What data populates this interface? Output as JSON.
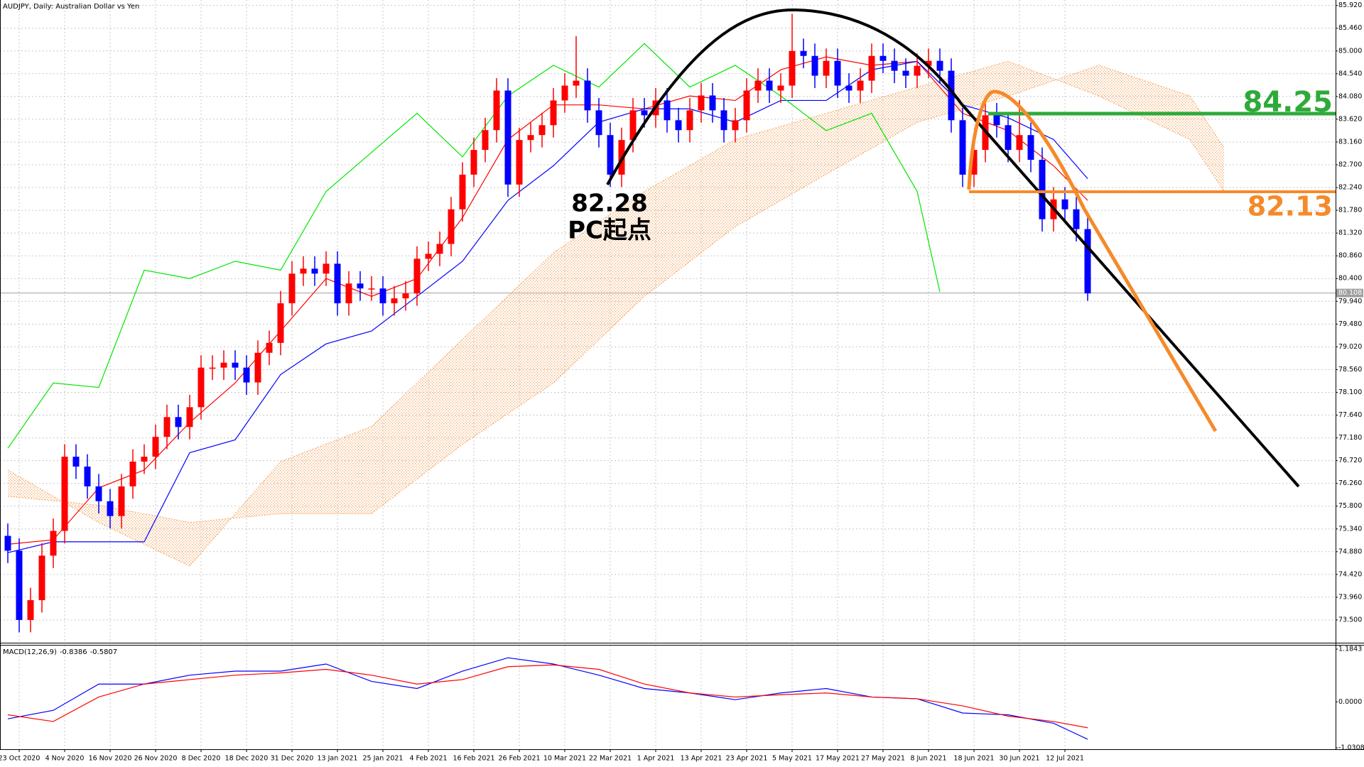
{
  "chart_data": [
    {
      "type": "candlestick",
      "title": "AUDJPY, Daily:  Australian Dollar vs Yen",
      "categories": [
        null,
        "23 Oct 2020",
        null,
        null,
        null,
        "4 Nov 2020",
        null,
        null,
        null,
        "16 Nov 2020",
        null,
        null,
        null,
        "26 Nov 2020",
        null,
        null,
        null,
        "8 Dec 2020",
        null,
        null,
        null,
        "18 Dec 2020",
        null,
        null,
        null,
        "31 Dec 2020",
        null,
        null,
        null,
        "13 Jan 2021",
        null,
        null,
        null,
        "25 Jan 2021",
        null,
        null,
        null,
        "4 Feb 2021",
        null,
        null,
        null,
        "16 Feb 2021",
        null,
        null,
        null,
        "26 Feb 2021",
        null,
        null,
        null,
        "10 Mar 2021",
        null,
        null,
        null,
        "22 Mar 2021",
        null,
        null,
        null,
        "1 Apr 2021",
        null,
        null,
        null,
        "13 Apr 2021",
        null,
        null,
        null,
        "23 Apr 2021",
        null,
        null,
        null,
        "5 May 2021",
        null,
        null,
        null,
        "17 May 2021",
        null,
        null,
        null,
        "27 May 2021",
        null,
        null,
        null,
        "8 Jun 2021",
        null,
        null,
        null,
        "18 Jun 2021",
        null,
        null,
        null,
        "30 Jun 2021",
        null,
        null,
        null,
        "12 Jul 2021",
        null,
        null
      ],
      "open": [
        75.2,
        74.9,
        73.5,
        73.9,
        74.8,
        75.3,
        76.8,
        76.6,
        76.2,
        75.9,
        75.6,
        76.2,
        76.7,
        76.8,
        77.2,
        77.6,
        77.4,
        77.8,
        78.6,
        78.6,
        78.7,
        78.6,
        78.3,
        78.9,
        79.1,
        79.9,
        80.5,
        80.6,
        80.5,
        80.7,
        79.9,
        80.3,
        80.2,
        80.2,
        79.9,
        80,
        80.1,
        80.8,
        80.9,
        81.1,
        81.8,
        82.5,
        83,
        83.4,
        84.2,
        82.3,
        83.2,
        83.3,
        83.5,
        84,
        84.3,
        84.4,
        83.8,
        83.3,
        82.5,
        83.2,
        83.8,
        83.7,
        84,
        83.6,
        83.4,
        83.8,
        84.1,
        83.8,
        83.4,
        83.6,
        84.2,
        84.4,
        84.2,
        84.3,
        85,
        84.9,
        84.5,
        84.8,
        84.3,
        84.2,
        84.4,
        84.9,
        84.8,
        84.6,
        84.5,
        84.7,
        84.8,
        84.6,
        83.6,
        82.5,
        83,
        83.7,
        83.5,
        83,
        83.3,
        82.8,
        81.6,
        82,
        81.8,
        81.4
      ],
      "high": [
        75.45,
        75.15,
        74.15,
        75.05,
        75.55,
        77.05,
        77.05,
        76.85,
        76.45,
        76.15,
        76.45,
        76.95,
        77.05,
        77.45,
        77.85,
        77.85,
        78.05,
        78.85,
        78.85,
        78.95,
        78.95,
        78.85,
        79.15,
        79.35,
        80.15,
        80.75,
        80.85,
        80.85,
        80.95,
        80.95,
        80.55,
        80.55,
        80.45,
        80.45,
        80.25,
        80.35,
        81.05,
        81.15,
        81.35,
        82.05,
        82.75,
        83.25,
        83.65,
        84.45,
        84.45,
        83.45,
        83.55,
        83.75,
        84.25,
        84.55,
        85.3,
        84.65,
        84.05,
        83.55,
        83.45,
        84.05,
        84.05,
        84.25,
        84.25,
        83.85,
        84.05,
        84.35,
        84.35,
        84.05,
        83.85,
        84.45,
        84.65,
        84.65,
        84.55,
        85.75,
        85.25,
        85.15,
        85.05,
        85.05,
        84.55,
        84.65,
        85.15,
        85.15,
        85.05,
        84.85,
        84.95,
        85.05,
        85.05,
        84.85,
        83.85,
        83.25,
        84,
        83.95,
        83.75,
        84,
        83.55,
        83.05,
        82.25,
        82.25,
        82.05,
        81.65
      ],
      "low": [
        74.65,
        73.25,
        73.25,
        73.65,
        74.55,
        75.05,
        76.35,
        75.95,
        75.65,
        75.35,
        75.35,
        75.95,
        76.45,
        76.55,
        76.95,
        77.15,
        77.15,
        77.55,
        78.35,
        78.35,
        78.35,
        78.05,
        78.05,
        78.65,
        78.85,
        79.65,
        80.25,
        80.25,
        80.25,
        79.65,
        79.65,
        79.95,
        79.95,
        79.65,
        79.65,
        79.75,
        79.85,
        80.55,
        80.65,
        80.85,
        81.55,
        82.25,
        82.75,
        83.15,
        82.05,
        82.05,
        82.95,
        83.05,
        83.25,
        83.75,
        84.05,
        83.55,
        83.05,
        82.25,
        82.25,
        82.95,
        83.45,
        83.45,
        83.35,
        83.15,
        83.15,
        83.55,
        83.55,
        83.15,
        83.15,
        83.35,
        83.95,
        83.95,
        83.95,
        84.05,
        84.65,
        84.25,
        84.25,
        84.05,
        83.95,
        83.95,
        84.15,
        84.55,
        84.35,
        84.25,
        84.25,
        84.45,
        84.35,
        83.35,
        82.25,
        82.25,
        82.75,
        83.25,
        82.75,
        82.75,
        82.55,
        81.35,
        81.35,
        81.55,
        81.15,
        79.95
      ],
      "close": [
        74.9,
        73.5,
        73.9,
        74.8,
        75.3,
        76.8,
        76.6,
        76.2,
        75.9,
        75.6,
        76.2,
        76.7,
        76.8,
        77.2,
        77.6,
        77.4,
        77.8,
        78.6,
        78.6,
        78.7,
        78.6,
        78.3,
        78.9,
        79.1,
        79.9,
        80.5,
        80.6,
        80.5,
        80.7,
        79.9,
        80.3,
        80.2,
        80.2,
        79.9,
        80,
        80.1,
        80.8,
        80.9,
        81.1,
        81.8,
        82.5,
        83,
        83.4,
        84.2,
        82.3,
        83.2,
        83.3,
        83.5,
        84,
        84.3,
        84.4,
        83.8,
        83.3,
        82.5,
        83.2,
        83.8,
        83.7,
        84,
        83.6,
        83.4,
        83.8,
        84.1,
        83.8,
        83.4,
        83.6,
        84.2,
        84.4,
        84.2,
        84.3,
        85,
        84.9,
        84.5,
        84.8,
        84.3,
        84.2,
        84.4,
        84.9,
        84.8,
        84.6,
        84.5,
        84.7,
        84.8,
        84.6,
        83.6,
        82.5,
        83,
        83.7,
        83.5,
        83,
        83.3,
        82.8,
        81.6,
        82,
        81.8,
        81.4,
        80.1
      ],
      "up_color": "#ff0000",
      "down_color": "#0000ff",
      "ylim": [
        73.04,
        86.03
      ],
      "yticks": [
        {
          "value": 85.92,
          "label": "85.920"
        },
        {
          "value": 85.46,
          "label": "85.460"
        },
        {
          "value": 85,
          "label": "85.000"
        },
        {
          "value": 84.54,
          "label": "84.540"
        },
        {
          "value": 84.08,
          "label": "84.080"
        },
        {
          "value": 83.62,
          "label": "83.620"
        },
        {
          "value": 83.16,
          "label": "83.160"
        },
        {
          "value": 82.7,
          "label": "82.700"
        },
        {
          "value": 82.24,
          "label": "82.240"
        },
        {
          "value": 81.78,
          "label": "81.780"
        },
        {
          "value": 81.32,
          "label": "81.320"
        },
        {
          "value": 80.86,
          "label": "80.860"
        },
        {
          "value": 80.4,
          "label": "80.400"
        },
        {
          "value": 79.94,
          "label": "79.940"
        },
        {
          "value": 79.48,
          "label": "79.480"
        },
        {
          "value": 79.02,
          "label": "79.020"
        },
        {
          "value": 78.56,
          "label": "78.560"
        },
        {
          "value": 78.1,
          "label": "78.100"
        },
        {
          "value": 77.64,
          "label": "77.640"
        },
        {
          "value": 77.18,
          "label": "77.180"
        },
        {
          "value": 76.72,
          "label": "76.720"
        },
        {
          "value": 76.26,
          "label": "76.260"
        },
        {
          "value": 75.8,
          "label": "75.800"
        },
        {
          "value": 75.34,
          "label": "75.340"
        },
        {
          "value": 74.88,
          "label": "74.880"
        },
        {
          "value": 74.42,
          "label": "74.420"
        },
        {
          "value": 73.96,
          "label": "73.960"
        },
        {
          "value": 73.5,
          "label": "73.500"
        }
      ],
      "grid": true,
      "last_price": 80.108,
      "overlays": [
        {
          "color": "#ff0000",
          "x": [
            0,
            4,
            8,
            12,
            16,
            20,
            24,
            28,
            32,
            36,
            40,
            44,
            48,
            52,
            56,
            60,
            64,
            68,
            72,
            76,
            80,
            84,
            88,
            92,
            95
          ],
          "values": [
            75.03,
            75.12,
            76.17,
            76.53,
            77.49,
            78.29,
            79.34,
            80.4,
            80.04,
            80.4,
            81.63,
            83.21,
            83.91,
            83.91,
            83.83,
            84.09,
            84,
            84.62,
            84.88,
            84.71,
            84.79,
            83.74,
            83.39,
            82.68,
            81.98
          ]
        },
        {
          "color": "#0000ff",
          "x": [
            0,
            4,
            8,
            12,
            16,
            20,
            24,
            28,
            32,
            36,
            40,
            44,
            48,
            52,
            56,
            60,
            64,
            68,
            72,
            76,
            80,
            84,
            88,
            92,
            95
          ],
          "values": [
            74.86,
            75.08,
            75.08,
            75.08,
            76.88,
            77.14,
            78.46,
            79.08,
            79.34,
            80.04,
            80.75,
            81.98,
            82.68,
            83.56,
            83.83,
            83.83,
            83.56,
            84,
            84,
            84.62,
            84.79,
            83.91,
            83.65,
            83.21,
            82.42
          ]
        },
        {
          "color": "#00e600",
          "x": [
            0,
            4,
            8,
            12,
            16,
            20,
            24,
            28,
            32,
            36,
            40,
            44,
            48,
            52,
            56,
            60,
            64,
            68,
            72,
            76,
            80,
            82
          ],
          "values": [
            76.97,
            78.29,
            78.2,
            80.57,
            80.4,
            80.75,
            80.57,
            82.16,
            82.95,
            83.74,
            82.86,
            84.09,
            84.71,
            84.27,
            85.15,
            84.27,
            84.71,
            84.09,
            83.39,
            83.74,
            82.16,
            80.13
          ]
        }
      ],
      "cloud": {
        "color": "#f4a460",
        "x": [
          0,
          8,
          16,
          24,
          32,
          40,
          48,
          56,
          64,
          72,
          80,
          88,
          96,
          104,
          107
        ],
        "span_a": [
          76.53,
          75.47,
          74.59,
          76.7,
          77.41,
          79.17,
          80.92,
          82.16,
          83.21,
          83.74,
          84.27,
          84.79,
          84.09,
          83.21,
          82.16
        ],
        "span_b": [
          76,
          75.82,
          75.47,
          75.65,
          75.65,
          77.05,
          78.29,
          80.04,
          81.45,
          82.51,
          83.56,
          84.09,
          84.71,
          84.09,
          83.04
        ]
      },
      "annotations": [
        "82.28",
        "PC起点",
        "84.25",
        "82.13"
      ]
    },
    {
      "type": "macd",
      "title": "MACD(12,26,9)",
      "x": [
        0,
        4,
        8,
        12,
        16,
        20,
        24,
        28,
        32,
        36,
        40,
        44,
        48,
        52,
        56,
        60,
        64,
        68,
        72,
        76,
        80,
        84,
        88,
        92,
        95
      ],
      "series": [
        {
          "color": "#0000ff",
          "values": [
            -0.38,
            -0.19,
            0.4,
            0.4,
            0.6,
            0.69,
            0.69,
            0.85,
            0.46,
            0.3,
            0.69,
            0.99,
            0.85,
            0.6,
            0.3,
            0.2,
            0.05,
            0.2,
            0.3,
            0.11,
            0.07,
            -0.25,
            -0.29,
            -0.48,
            -0.8386
          ]
        },
        {
          "color": "#ff0000",
          "values": [
            -0.29,
            -0.44,
            0.11,
            0.4,
            0.5,
            0.6,
            0.65,
            0.73,
            0.6,
            0.4,
            0.5,
            0.79,
            0.83,
            0.73,
            0.4,
            0.2,
            0.11,
            0.16,
            0.2,
            0.11,
            0.07,
            -0.09,
            -0.32,
            -0.44,
            -0.5807
          ]
        }
      ],
      "ylim": [
        -1.0308,
        1.1843
      ],
      "yticks": [
        1.1843,
        {
          "value": 0,
          "label": "0.0000"
        },
        -1.0308
      ]
    }
  ]
}
